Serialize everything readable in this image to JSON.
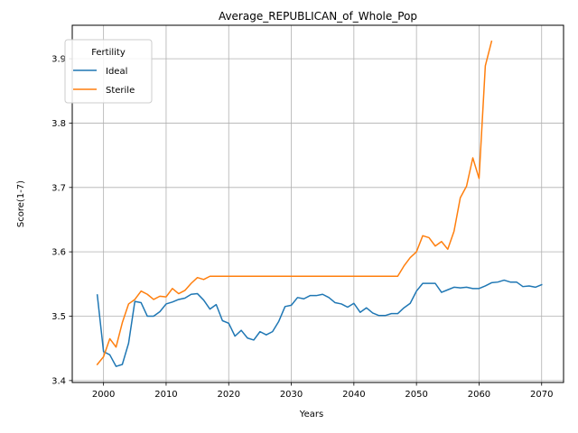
{
  "chart_data": {
    "type": "line",
    "title": "Average_REPUBLICAN_of_Whole_Pop",
    "xlabel": "Years",
    "ylabel": "Score(1-7)",
    "xlim": [
      1995,
      2073.5
    ],
    "ylim": [
      3.397,
      3.952
    ],
    "xticks": [
      2000,
      2010,
      2020,
      2030,
      2040,
      2050,
      2060,
      2070
    ],
    "yticks": [
      3.4,
      3.5,
      3.6,
      3.7,
      3.8,
      3.9
    ],
    "grid": true,
    "legend": {
      "title": "Fertility",
      "placement": "top-left"
    },
    "series": [
      {
        "name": "Ideal",
        "color": "#1f77b4",
        "x": [
          1999,
          2000,
          2001,
          2002,
          2003,
          2004,
          2005,
          2006,
          2007,
          2008,
          2009,
          2010,
          2011,
          2012,
          2013,
          2014,
          2015,
          2016,
          2017,
          2018,
          2019,
          2020,
          2021,
          2022,
          2023,
          2024,
          2025,
          2026,
          2027,
          2028,
          2029,
          2030,
          2031,
          2032,
          2033,
          2034,
          2035,
          2036,
          2037,
          2038,
          2039,
          2040,
          2041,
          2042,
          2043,
          2044,
          2045,
          2046,
          2047,
          2048,
          2049,
          2050,
          2051,
          2052,
          2053,
          2054,
          2055,
          2056,
          2057,
          2058,
          2059,
          2060,
          2061,
          2062,
          2063,
          2064,
          2065,
          2066,
          2067,
          2068,
          2069,
          2070
        ],
        "values": [
          3.533,
          3.445,
          3.44,
          3.422,
          3.425,
          3.458,
          3.523,
          3.521,
          3.5,
          3.5,
          3.507,
          3.519,
          3.522,
          3.526,
          3.528,
          3.534,
          3.535,
          3.525,
          3.511,
          3.518,
          3.493,
          3.489,
          3.469,
          3.478,
          3.466,
          3.463,
          3.476,
          3.471,
          3.476,
          3.492,
          3.515,
          3.517,
          3.529,
          3.527,
          3.532,
          3.532,
          3.534,
          3.529,
          3.521,
          3.519,
          3.514,
          3.52,
          3.506,
          3.513,
          3.505,
          3.501,
          3.501,
          3.504,
          3.504,
          3.513,
          3.52,
          3.539,
          3.551,
          3.551,
          3.551,
          3.537,
          3.541,
          3.545,
          3.544,
          3.545,
          3.543,
          3.543,
          3.547,
          3.552,
          3.553,
          3.556,
          3.553,
          3.553,
          3.546,
          3.547,
          3.545,
          3.549
        ]
      },
      {
        "name": "Sterile",
        "color": "#ff7f0e",
        "x": [
          1999,
          2000,
          2001,
          2002,
          2003,
          2004,
          2005,
          2006,
          2007,
          2008,
          2009,
          2010,
          2011,
          2012,
          2013,
          2014,
          2015,
          2016,
          2017,
          2018,
          2019,
          2020,
          2021,
          2022,
          2023,
          2024,
          2025,
          2026,
          2027,
          2028,
          2029,
          2030,
          2031,
          2032,
          2033,
          2034,
          2035,
          2036,
          2037,
          2038,
          2039,
          2040,
          2041,
          2042,
          2043,
          2044,
          2045,
          2046,
          2047,
          2048,
          2049,
          2050,
          2051,
          2052,
          2053,
          2054,
          2055,
          2056,
          2057,
          2058,
          2059,
          2060,
          2061,
          2062
        ],
        "values": [
          3.425,
          3.437,
          3.465,
          3.452,
          3.49,
          3.519,
          3.526,
          3.539,
          3.534,
          3.526,
          3.531,
          3.53,
          3.543,
          3.535,
          3.54,
          3.551,
          3.56,
          3.557,
          3.562,
          3.562,
          3.562,
          3.562,
          3.562,
          3.562,
          3.562,
          3.562,
          3.562,
          3.562,
          3.562,
          3.562,
          3.562,
          3.562,
          3.562,
          3.562,
          3.562,
          3.562,
          3.562,
          3.562,
          3.562,
          3.562,
          3.562,
          3.562,
          3.562,
          3.562,
          3.562,
          3.562,
          3.562,
          3.562,
          3.562,
          3.578,
          3.591,
          3.6,
          3.625,
          3.622,
          3.609,
          3.616,
          3.604,
          3.632,
          3.684,
          3.702,
          3.746,
          3.714,
          3.889,
          3.927
        ]
      }
    ]
  }
}
